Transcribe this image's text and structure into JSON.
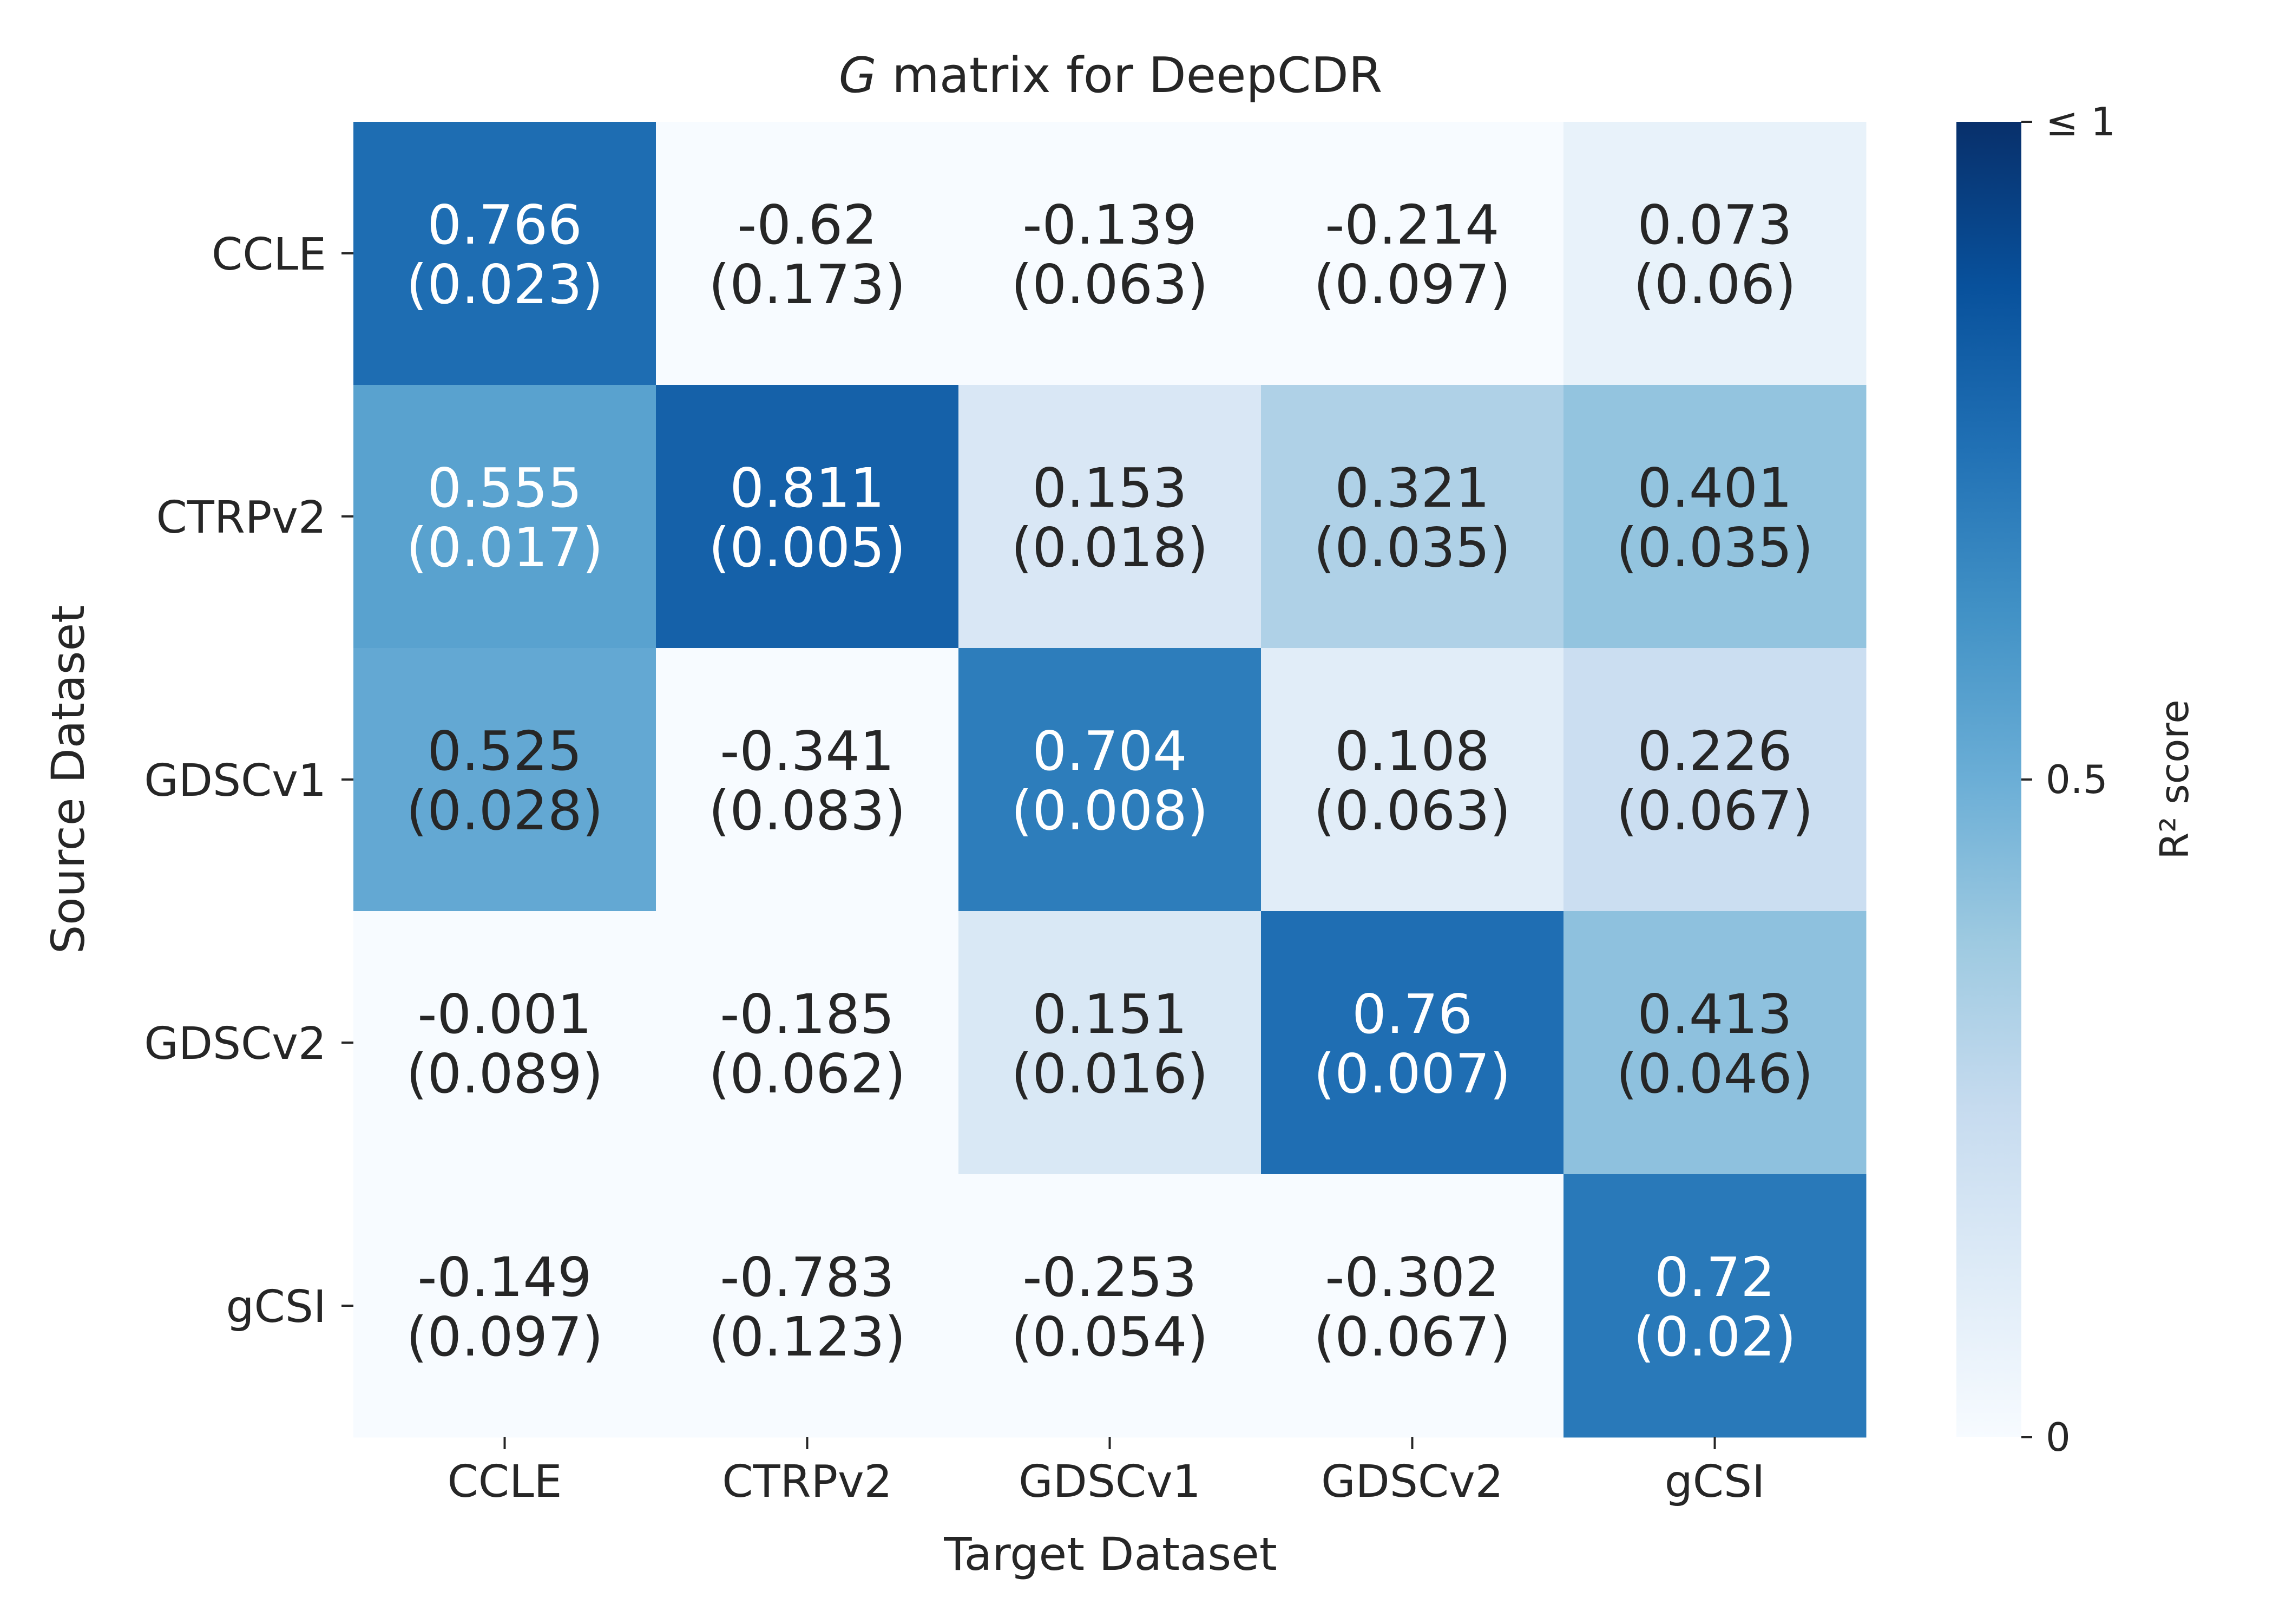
{
  "chart_data": {
    "type": "heatmap",
    "title_italic": "G",
    "title_rest": " matrix for DeepCDR",
    "xlabel": "Target Dataset",
    "ylabel": "Source Dataset",
    "x_categories": [
      "CCLE",
      "CTRPv2",
      "GDSCv1",
      "GDSCv2",
      "gCSI"
    ],
    "y_categories": [
      "CCLE",
      "CTRPv2",
      "GDSCv1",
      "GDSCv2",
      "gCSI"
    ],
    "values": [
      [
        0.766,
        -0.62,
        -0.139,
        -0.214,
        0.073
      ],
      [
        0.555,
        0.811,
        0.153,
        0.321,
        0.401
      ],
      [
        0.525,
        -0.341,
        0.704,
        0.108,
        0.226
      ],
      [
        -0.001,
        -0.185,
        0.151,
        0.76,
        0.413
      ],
      [
        -0.149,
        -0.783,
        -0.253,
        -0.302,
        0.72
      ]
    ],
    "errors": [
      [
        "(0.023)",
        "(0.173)",
        "(0.063)",
        "(0.097)",
        "(0.06)"
      ],
      [
        "(0.017)",
        "(0.005)",
        "(0.018)",
        "(0.035)",
        "(0.035)"
      ],
      [
        "(0.028)",
        "(0.083)",
        "(0.008)",
        "(0.063)",
        "(0.067)"
      ],
      [
        "(0.089)",
        "(0.062)",
        "(0.016)",
        "(0.007)",
        "(0.046)"
      ],
      [
        "(0.097)",
        "(0.123)",
        "(0.054)",
        "(0.067)",
        "(0.02)"
      ]
    ],
    "colorbar": {
      "label": "R² score",
      "ticks": [
        {
          "value": 0,
          "label": "0"
        },
        {
          "value": 0.5,
          "label": "0.5"
        },
        {
          "value": 1,
          "label": "≤ 1"
        }
      ],
      "range": [
        0,
        1
      ],
      "colormap": "Blues"
    }
  }
}
